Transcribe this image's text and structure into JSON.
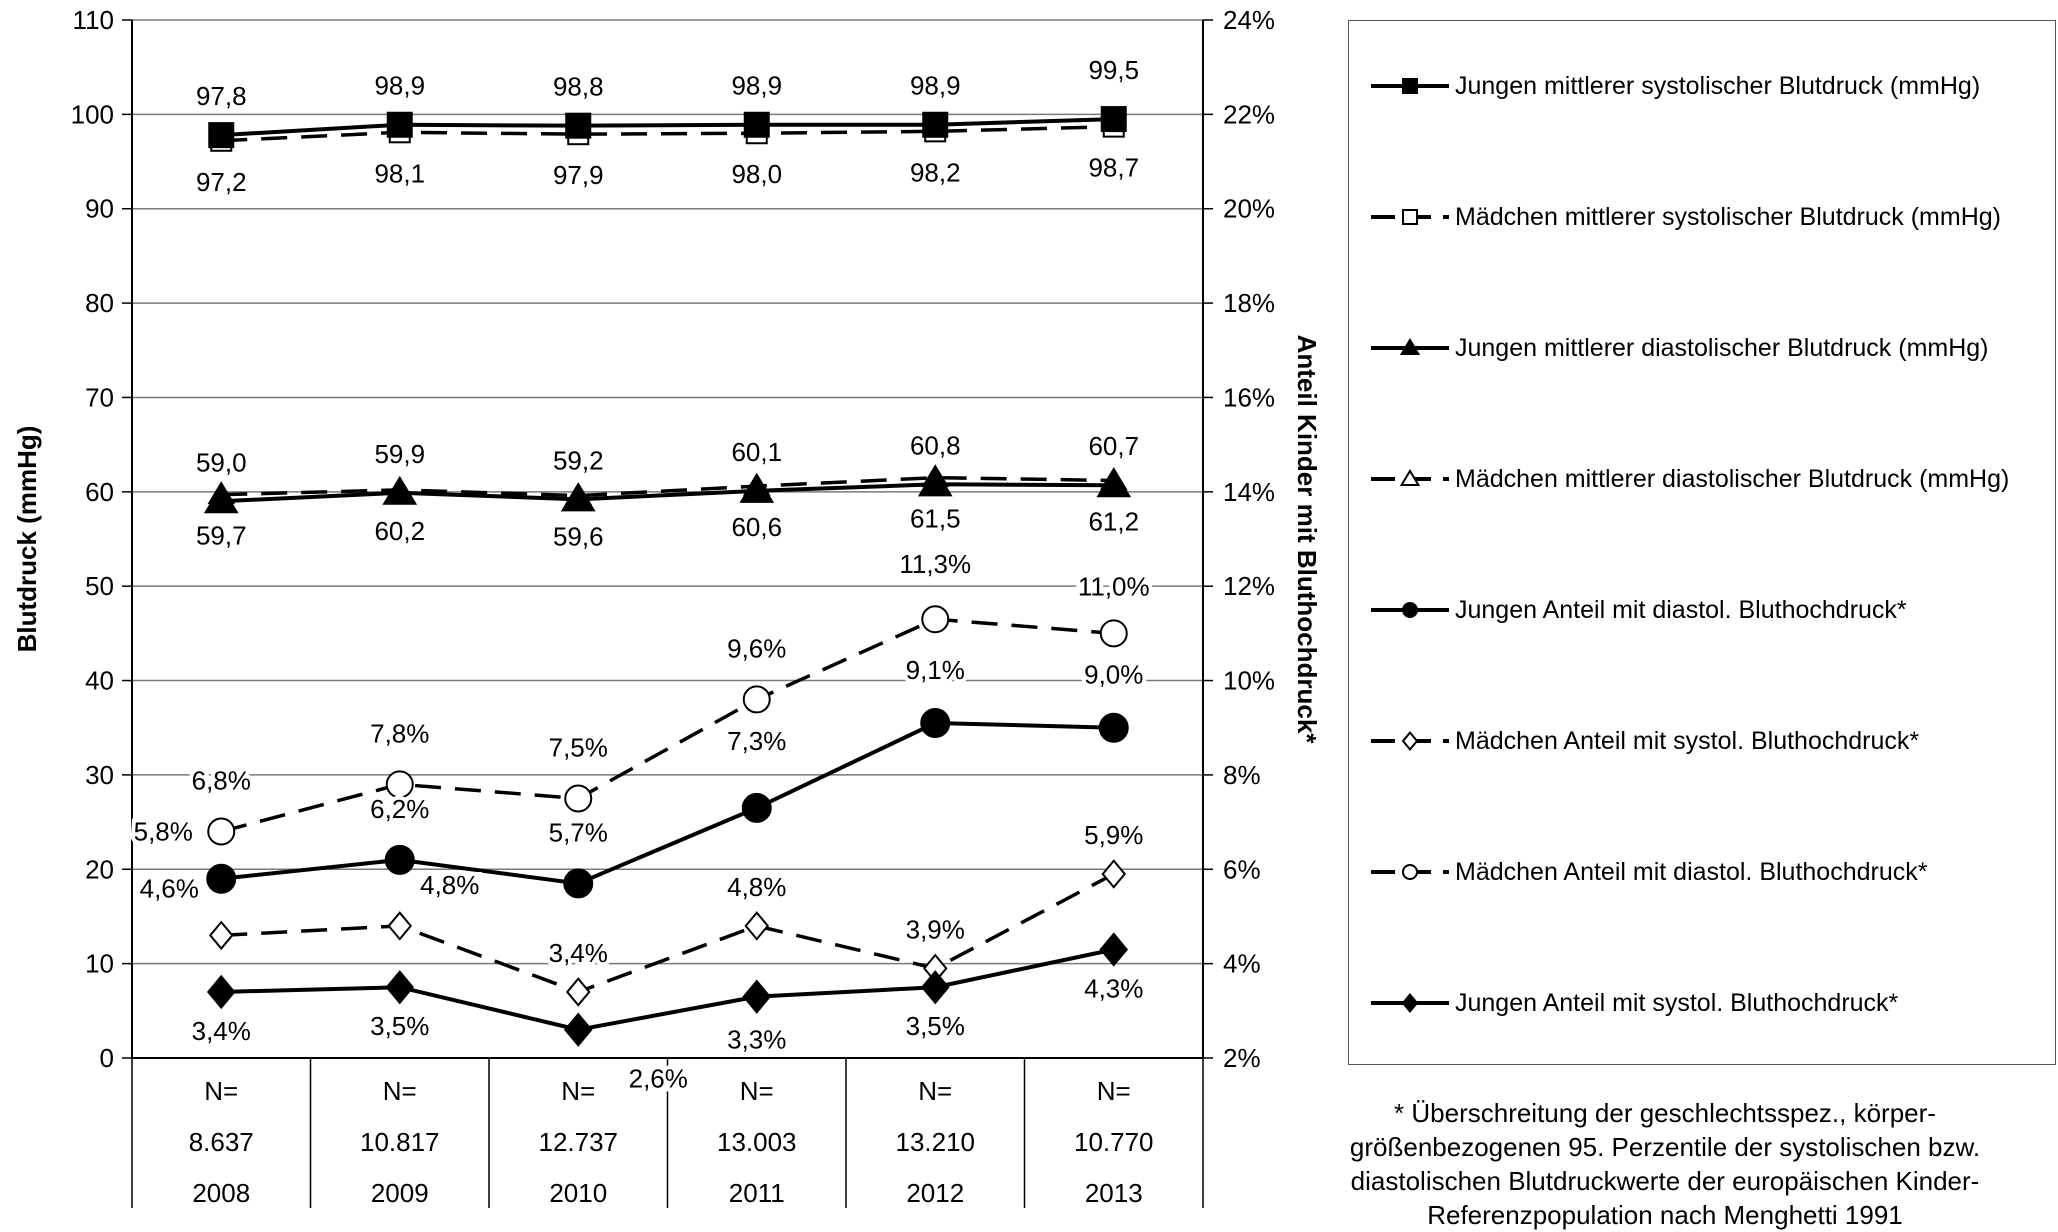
{
  "chart_data": {
    "type": "line",
    "categories": [
      "2008",
      "2009",
      "2010",
      "2011",
      "2012",
      "2013"
    ],
    "sample_sizes": [
      "8.637",
      "10.817",
      "12.737",
      "13.003",
      "13.210",
      "10.770"
    ],
    "n_label": "N=",
    "ylabel": "Blutdruck (mmHg)",
    "y2label": "Anteil Kinder mit Bluthochdruck*",
    "ylim": [
      0,
      110
    ],
    "y2lim": [
      2,
      24
    ],
    "yticks": [
      "0",
      "10",
      "20",
      "30",
      "40",
      "50",
      "60",
      "70",
      "80",
      "90",
      "100",
      "110"
    ],
    "y2ticks": [
      "2%",
      "4%",
      "6%",
      "8%",
      "10%",
      "12%",
      "14%",
      "16%",
      "18%",
      "20%",
      "22%",
      "24%"
    ],
    "grid": true,
    "legend_position": "right",
    "series": [
      {
        "name": "Jungen mittlerer systolischer Blutdruck (mmHg)",
        "axis": "left",
        "marker": "square",
        "fill": "filled",
        "dash": "solid",
        "values": [
          97.8,
          98.9,
          98.8,
          98.9,
          98.9,
          99.5
        ],
        "labels": [
          "97,8",
          "98,9",
          "98,8",
          "98,9",
          "98,9",
          "99,5"
        ]
      },
      {
        "name": "Mädchen mittlerer systolischer Blutdruck (mmHg)",
        "axis": "left",
        "marker": "square",
        "fill": "open",
        "dash": "dashed",
        "values": [
          97.2,
          98.1,
          97.9,
          98.0,
          98.2,
          98.7
        ],
        "labels": [
          "97,2",
          "98,1",
          "97,9",
          "98,0",
          "98,2",
          "98,7"
        ]
      },
      {
        "name": "Jungen mittlerer diastolischer Blutdruck (mmHg)",
        "axis": "left",
        "marker": "triangle",
        "fill": "filled",
        "dash": "solid",
        "values": [
          59.0,
          59.9,
          59.2,
          60.1,
          60.8,
          60.7
        ],
        "labels": [
          "59,0",
          "59,9",
          "59,2",
          "60,1",
          "60,8",
          "60,7"
        ]
      },
      {
        "name": "Mädchen mittlerer diastolischer Blutdruck (mmHg)",
        "axis": "left",
        "marker": "triangle",
        "fill": "open",
        "dash": "dashed",
        "values": [
          59.7,
          60.2,
          59.6,
          60.6,
          61.5,
          61.2
        ],
        "labels": [
          "59,7",
          "60,2",
          "59,6",
          "60,6",
          "61,5",
          "61,2"
        ]
      },
      {
        "name": "Jungen Anteil mit diastol. Bluthochdruck*",
        "axis": "right",
        "marker": "circle",
        "fill": "filled",
        "dash": "solid",
        "values": [
          5.8,
          6.2,
          5.7,
          7.3,
          9.1,
          9.0
        ],
        "labels": [
          "5,8%",
          "6,2%",
          "5,7%",
          "7,3%",
          "9,1%",
          "9,0%"
        ]
      },
      {
        "name": "Mädchen Anteil mit systol. Bluthochdruck*",
        "axis": "right",
        "marker": "diamond",
        "fill": "open",
        "dash": "dashed",
        "values": [
          4.6,
          4.8,
          3.4,
          4.8,
          3.9,
          5.9
        ],
        "labels": [
          "4,6%",
          "4,8%",
          "3,4%",
          "4,8%",
          "3,9%",
          "5,9%"
        ]
      },
      {
        "name": "Mädchen Anteil mit diastol. Bluthochdruck*",
        "axis": "right",
        "marker": "circle",
        "fill": "open",
        "dash": "dashed",
        "values": [
          6.8,
          7.8,
          7.5,
          9.6,
          11.3,
          11.0
        ],
        "labels": [
          "6,8%",
          "7,8%",
          "7,5%",
          "9,6%",
          "11,3%",
          "11,0%"
        ]
      },
      {
        "name": "Jungen Anteil mit systol. Bluthochdruck*",
        "axis": "right",
        "marker": "diamond",
        "fill": "filled",
        "dash": "solid",
        "values": [
          3.4,
          3.5,
          2.6,
          3.3,
          3.5,
          4.3
        ],
        "labels": [
          "3,4%",
          "3,5%",
          "2,6%",
          "3,3%",
          "3,5%",
          "4,3%"
        ]
      }
    ],
    "footnote": "* Überschreitung der geschlechtsspez., körper-\ngrößenbezogenen 95. Perzentile der systolischen bzw.\ndiastolischen Blutdruckwerte der europäischen Kinder-\nReferenzpopulation nach Menghetti 1991"
  }
}
